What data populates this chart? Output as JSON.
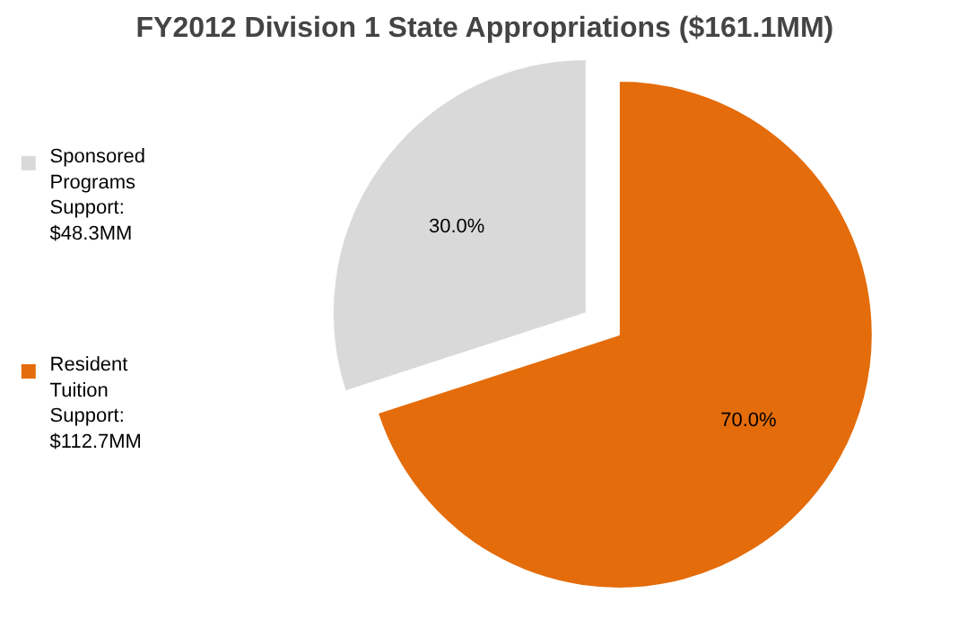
{
  "chart_data": {
    "type": "pie",
    "title": "FY2012 Division 1 State Appropriations ($161.1MM)",
    "categories": [
      "Sponsored Programs Support: $48.3MM",
      "Resident Tuition Support: $112.7MM"
    ],
    "values": [
      30.0,
      70.0
    ],
    "colors": [
      "#d9d9d9",
      "#e46c0a"
    ],
    "value_labels": [
      "30.0%",
      "70.0%"
    ],
    "legend": "left"
  }
}
